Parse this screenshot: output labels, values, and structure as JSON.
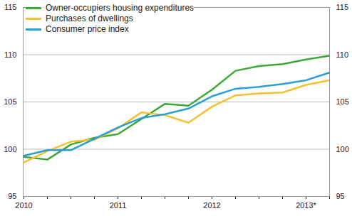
{
  "chart_data": {
    "type": "line",
    "categories": [
      "2010",
      null,
      null,
      null,
      "2011",
      null,
      null,
      null,
      "2012",
      null,
      null,
      null,
      "2013*",
      null
    ],
    "series": [
      {
        "name": "Owner-occupiers housing expenditures",
        "color": "#3aaa35",
        "values": [
          99.2,
          98.9,
          100.5,
          101.2,
          101.6,
          103.2,
          104.8,
          104.6,
          106.3,
          108.3,
          108.8,
          109.0,
          109.5,
          109.9
        ]
      },
      {
        "name": "Purchases of dwellings",
        "color": "#f7c031",
        "values": [
          98.6,
          99.8,
          100.8,
          101.0,
          102.2,
          103.9,
          103.6,
          102.8,
          104.5,
          105.7,
          105.9,
          106.0,
          106.8,
          107.3
        ]
      },
      {
        "name": "Consumer price index",
        "color": "#2a9fd6",
        "values": [
          99.3,
          99.9,
          99.9,
          101.1,
          102.3,
          103.3,
          103.7,
          104.3,
          105.6,
          106.4,
          106.6,
          106.9,
          107.3,
          108.1
        ]
      }
    ],
    "ylim": [
      95,
      115
    ],
    "yticks": [
      95,
      100,
      105,
      110,
      115
    ],
    "grid": true,
    "legend": "top-left"
  }
}
